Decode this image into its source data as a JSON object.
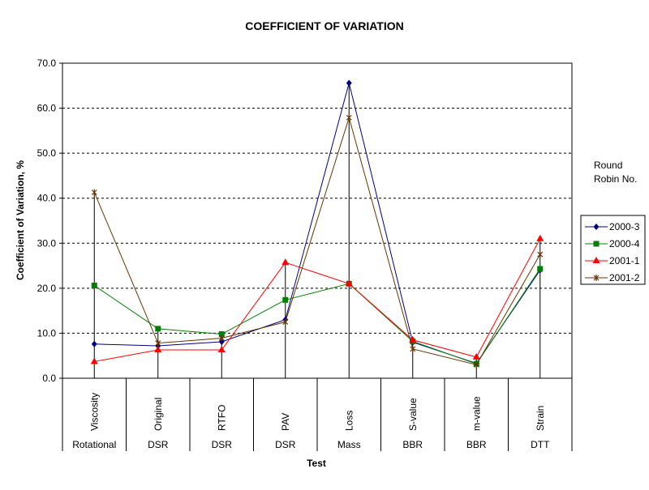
{
  "chart_data": {
    "type": "line",
    "title": "COEFFICIENT OF VARIATION",
    "xlabel": "Test",
    "ylabel": "Coefficient of Variation, %",
    "ylim": [
      0,
      70
    ],
    "yticks": [
      "0.0",
      "10.0",
      "20.0",
      "30.0",
      "40.0",
      "50.0",
      "60.0",
      "70.0"
    ],
    "grid": "horizontal dashed",
    "categories": [
      "Viscosity",
      "Original",
      "RTFO",
      "PAV",
      "Loss",
      "S-value",
      "m-value",
      "Strain"
    ],
    "category_groups": [
      "Rotational",
      "DSR",
      "DSR",
      "DSR",
      "Mass",
      "BBR",
      "BBR",
      "DTT"
    ],
    "legend_title": [
      "Round",
      "Robin No."
    ],
    "legend_position": "right",
    "series": [
      {
        "name": "2000-3",
        "color": "#000080",
        "marker": "diamond",
        "values": [
          7.6,
          7.2,
          8.1,
          13.0,
          65.6,
          8.0,
          3.3,
          24.0
        ]
      },
      {
        "name": "2000-4",
        "color": "#008000",
        "marker": "square",
        "values": [
          20.6,
          11.0,
          9.8,
          17.4,
          21.0,
          8.2,
          3.2,
          24.3
        ]
      },
      {
        "name": "2001-1",
        "color": "#ff0000",
        "marker": "triangle",
        "values": [
          3.7,
          6.3,
          6.3,
          25.7,
          21.0,
          8.5,
          4.7,
          31.0
        ]
      },
      {
        "name": "2001-2",
        "color": "#663300",
        "marker": "star",
        "values": [
          41.3,
          7.8,
          8.9,
          12.5,
          57.9,
          6.5,
          3.0,
          27.5
        ]
      }
    ]
  }
}
